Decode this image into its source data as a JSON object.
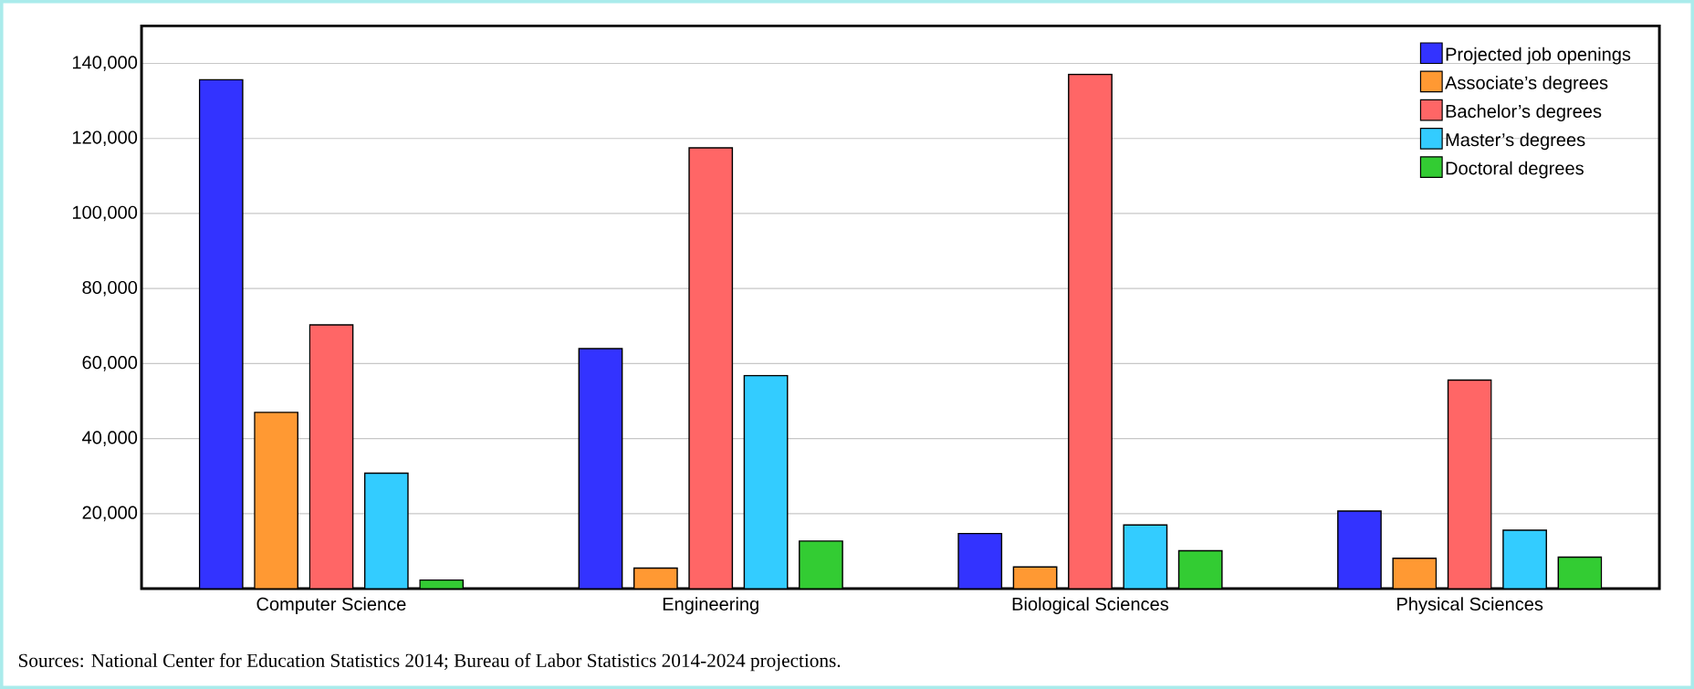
{
  "chart_data": {
    "type": "bar",
    "categories": [
      "Computer Science",
      "Engineering",
      "Biological Sciences",
      "Physical Sciences"
    ],
    "series": [
      {
        "name": "Projected job openings",
        "color": "#3333ff",
        "values": [
          135700,
          64000,
          14700,
          20700
        ]
      },
      {
        "name": "Associate’s degrees",
        "color": "#ff9933",
        "values": [
          47000,
          5500,
          5800,
          8100
        ]
      },
      {
        "name": "Bachelor’s degrees",
        "color": "#ff6666",
        "values": [
          70300,
          117500,
          137100,
          55600
        ]
      },
      {
        "name": "Master’s degrees",
        "color": "#33ccff",
        "values": [
          30800,
          56800,
          17000,
          15600
        ]
      },
      {
        "name": "Doctoral degrees",
        "color": "#33cc33",
        "values": [
          2300,
          12700,
          10100,
          8400
        ]
      }
    ],
    "ylim": [
      0,
      150000
    ],
    "yticks": [
      {
        "value": 20000,
        "label": "20,000"
      },
      {
        "value": 40000,
        "label": "40,000"
      },
      {
        "value": 60000,
        "label": "60,000"
      },
      {
        "value": 80000,
        "label": "80,000"
      },
      {
        "value": 100000,
        "label": "100,000"
      },
      {
        "value": 120000,
        "label": "120,000"
      },
      {
        "value": 140000,
        "label": "140,000"
      }
    ],
    "grid": "y",
    "legend": "top right",
    "annotations": [
      "Sources: National Center for Education Statistics 2014; Bureau of Labor Statistics 2014-2024 projections."
    ]
  }
}
